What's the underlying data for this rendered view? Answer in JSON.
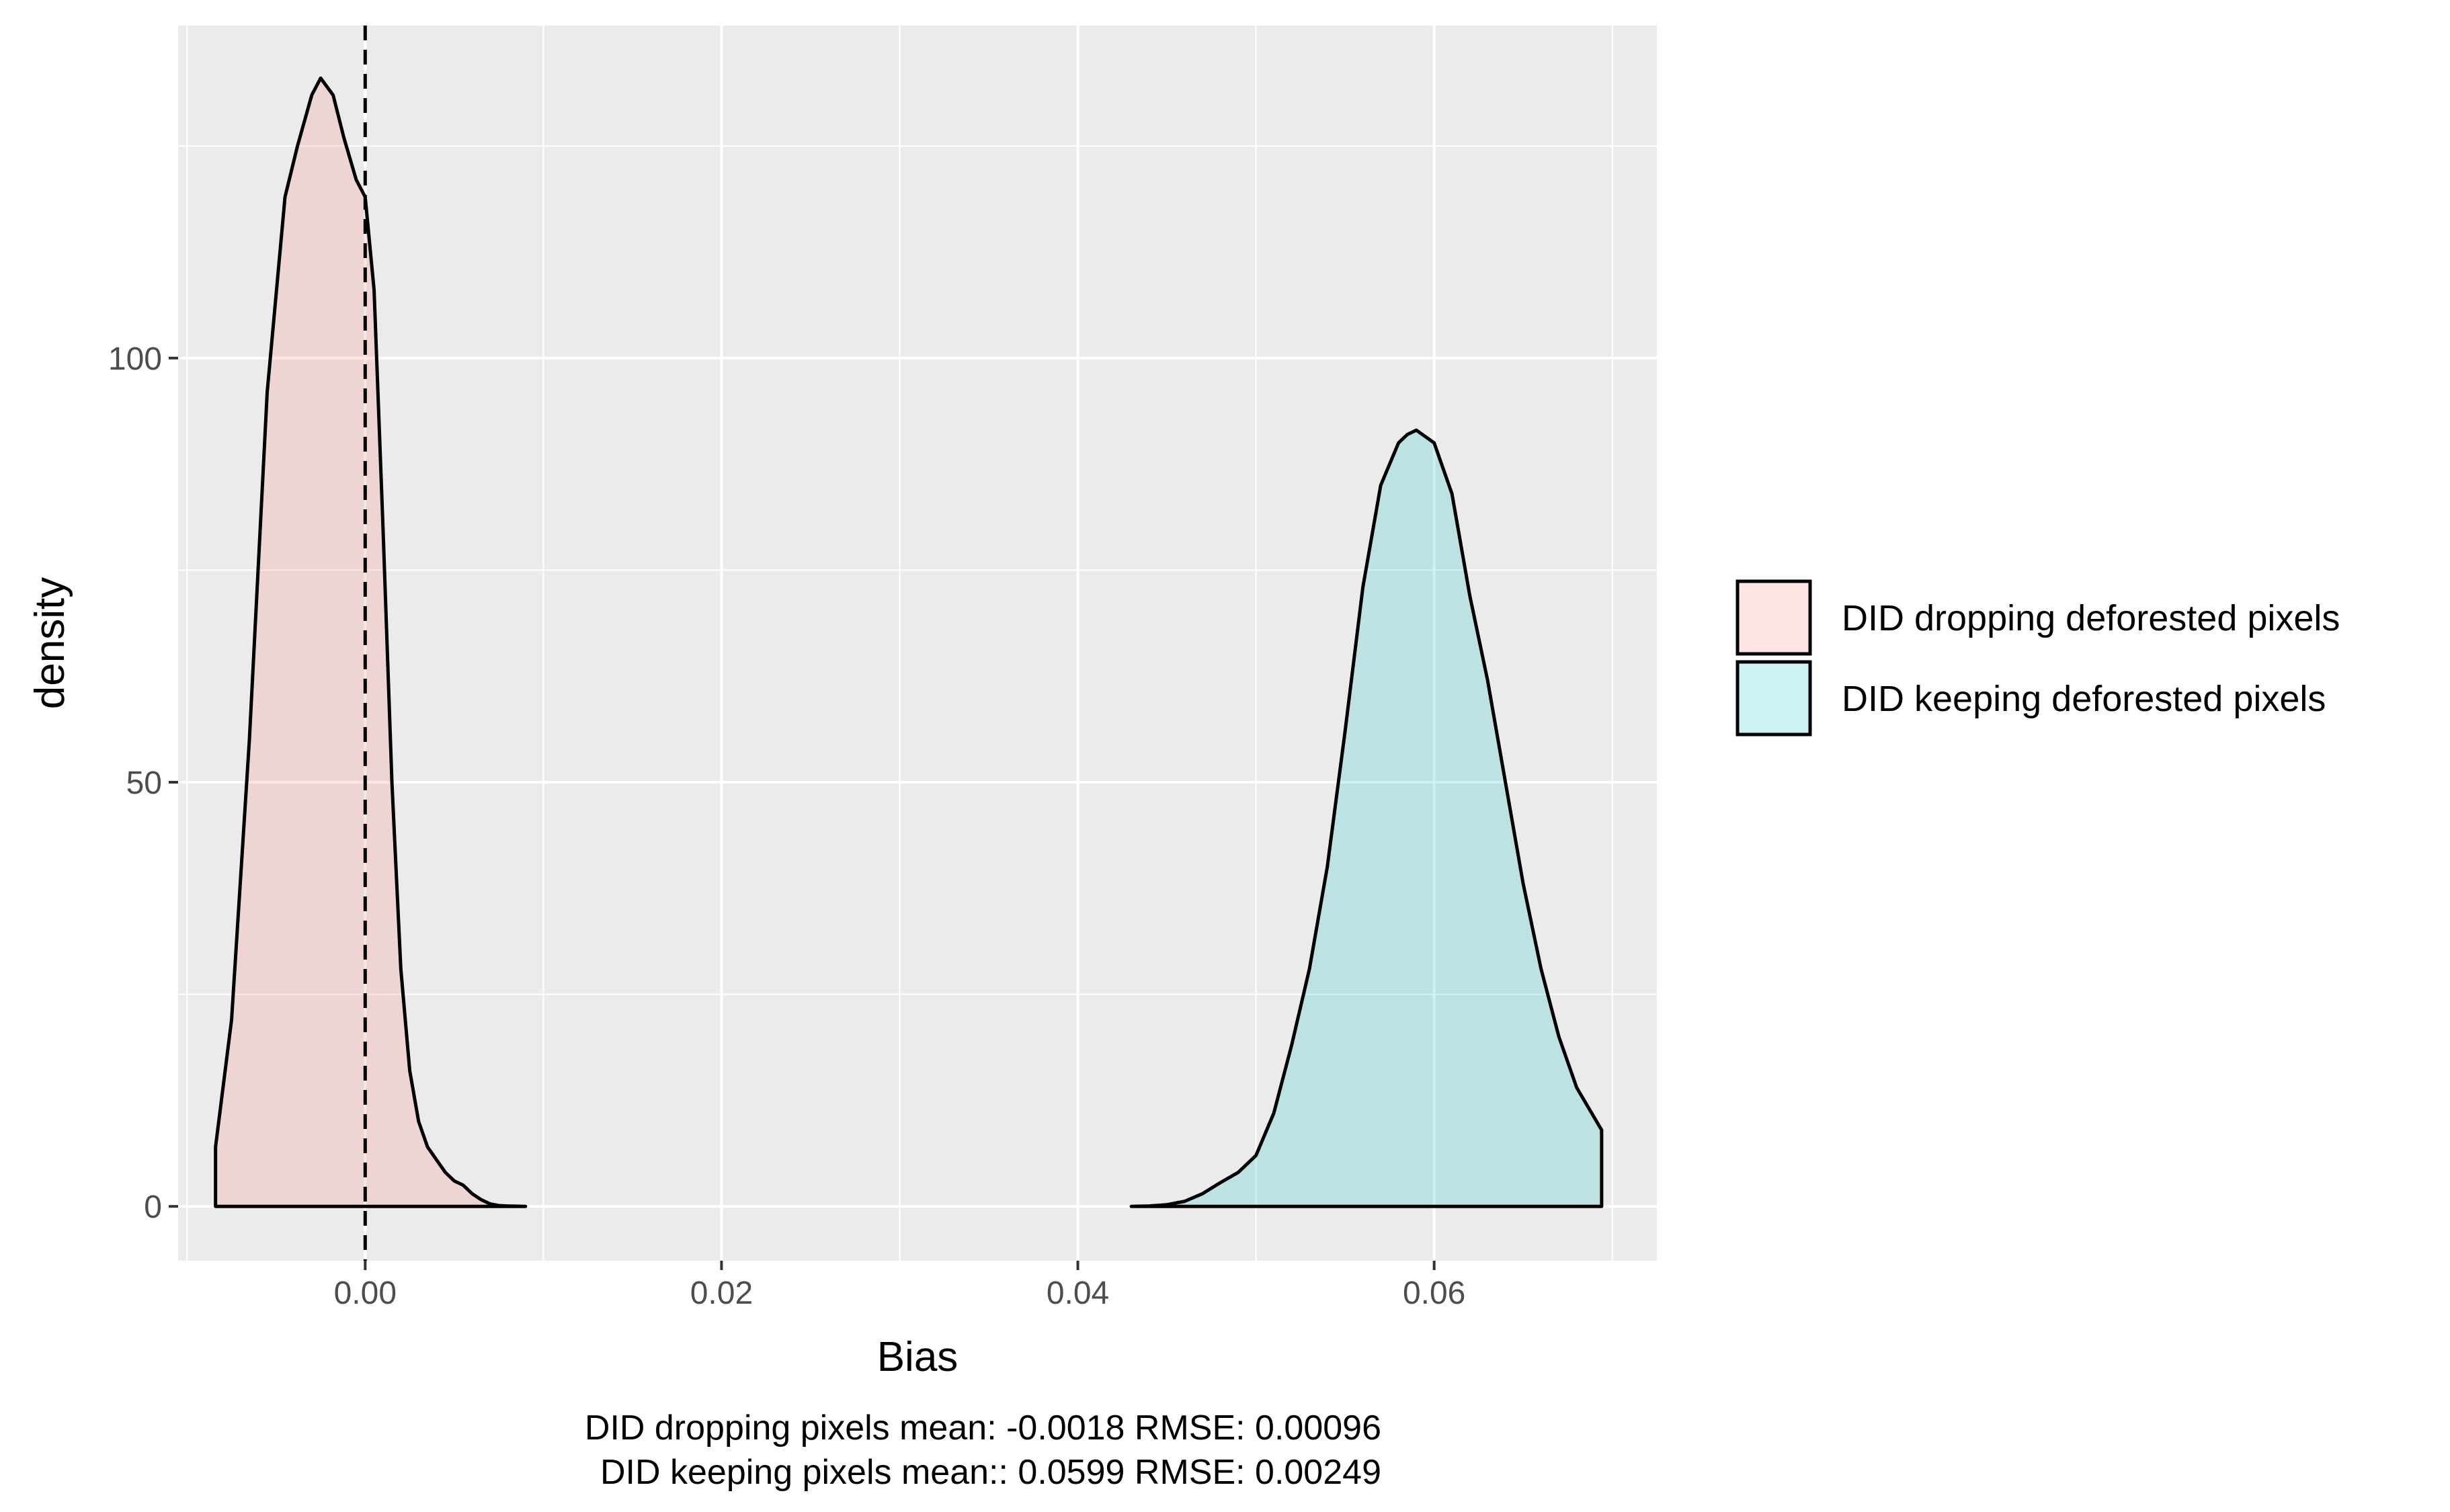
{
  "chart_data": {
    "type": "area",
    "xlabel": "Bias",
    "ylabel": "density",
    "xlim": [
      -0.0105,
      0.0725
    ],
    "ylim": [
      -6.4,
      139.2
    ],
    "x_ticks": [
      0.0,
      0.02,
      0.04,
      0.06
    ],
    "x_tick_labels": [
      "0.00",
      "0.02",
      "0.04",
      "0.06"
    ],
    "y_ticks": [
      0,
      50,
      100
    ],
    "y_tick_labels": [
      "0",
      "50",
      "100"
    ],
    "grid": true,
    "legend_position": "right",
    "reference_line": {
      "x": 0.0,
      "style": "dashed"
    },
    "series": [
      {
        "name": "DID dropping deforested pixels",
        "fill": "#f8766d",
        "fill_opacity": 0.2,
        "x": [
          -0.0084,
          -0.0075,
          -0.0065,
          -0.0055,
          -0.0045,
          -0.0038,
          -0.003,
          -0.0025,
          -0.0018,
          -0.0012,
          -0.0005,
          0.0,
          0.0005,
          0.001,
          0.0015,
          0.002,
          0.0025,
          0.003,
          0.0035,
          0.004,
          0.0045,
          0.005,
          0.0055,
          0.006,
          0.0065,
          0.007,
          0.0075,
          0.008,
          0.009
        ],
        "y": [
          7,
          22,
          55,
          96,
          119,
          125,
          131,
          133,
          131,
          126,
          121,
          119,
          108,
          80,
          50,
          28,
          16,
          10,
          7,
          5.5,
          4,
          3,
          2.5,
          1.5,
          0.8,
          0.3,
          0.1,
          0.05,
          0.0
        ]
      },
      {
        "name": "DID keeping deforested pixels",
        "fill": "#00bfc4",
        "fill_opacity": 0.2,
        "x": [
          0.043,
          0.044,
          0.045,
          0.046,
          0.047,
          0.048,
          0.049,
          0.05,
          0.051,
          0.052,
          0.053,
          0.054,
          0.055,
          0.056,
          0.057,
          0.058,
          0.0585,
          0.059,
          0.06,
          0.061,
          0.062,
          0.063,
          0.064,
          0.065,
          0.066,
          0.067,
          0.068,
          0.0694
        ],
        "y": [
          0.0,
          0.05,
          0.2,
          0.6,
          1.5,
          2.8,
          4.0,
          6.0,
          11,
          19,
          28,
          40,
          56,
          73,
          85,
          90,
          91,
          91.5,
          90,
          84,
          72,
          62,
          50,
          38,
          28,
          20,
          14,
          9
        ]
      }
    ],
    "annotations": [
      "DID dropping pixels mean: -0.0018 RMSE: 0.00096",
      "DID keeping pixels mean:: 0.0599 RMSE: 0.00249"
    ]
  }
}
